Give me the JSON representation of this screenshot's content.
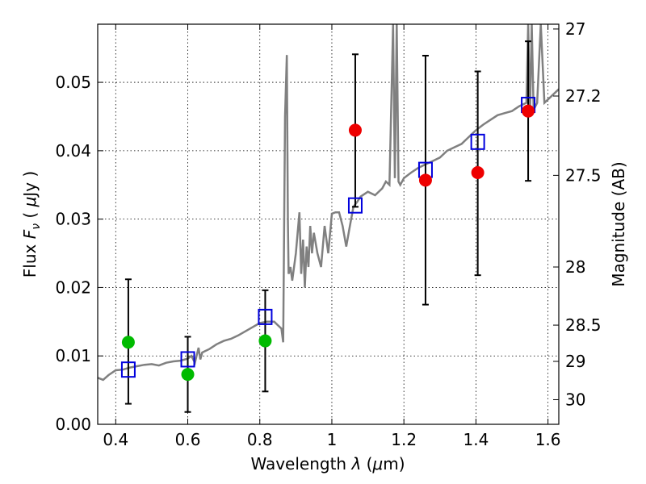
{
  "chart_data": {
    "type": "scatter",
    "xlabel": "Wavelength  λ (μm)",
    "ylabel": "Flux  F_ν ( μJy )",
    "y2label": "Magnitude (AB)",
    "xlim": [
      0.35,
      1.63
    ],
    "ylim": [
      0.0,
      0.0585
    ],
    "grid": true,
    "x_ticks": [
      0.4,
      0.6,
      0.8,
      1.0,
      1.2,
      1.4,
      1.6
    ],
    "x_tick_labels": [
      "0.4",
      "0.6",
      "0.8",
      "1",
      "1.2",
      "1.4",
      "1.6"
    ],
    "y_ticks": [
      0.0,
      0.01,
      0.02,
      0.03,
      0.04,
      0.05
    ],
    "y_tick_labels": [
      "0.00",
      "0.01",
      "0.02",
      "0.03",
      "0.04",
      "0.05"
    ],
    "y2_ticks": [
      {
        "label": "27",
        "flux": 0.0578
      },
      {
        "label": "27.2",
        "flux": 0.048
      },
      {
        "label": "27.5",
        "flux": 0.0364
      },
      {
        "label": "28",
        "flux": 0.023
      },
      {
        "label": "28.5",
        "flux": 0.0145
      },
      {
        "label": "29",
        "flux": 0.0092
      },
      {
        "label": "30",
        "flux": 0.0036
      }
    ],
    "colors": {
      "spectrum": "#808080",
      "green_points": "#00bb00",
      "red_points": "#ee0000",
      "model_squares": "#0000dd",
      "errorbars": "#000000",
      "grid": "#000000"
    },
    "series": [
      {
        "name": "Model spectrum",
        "style": "line",
        "color": "#808080",
        "x": [
          0.35,
          0.365,
          0.38,
          0.4,
          0.42,
          0.44,
          0.46,
          0.48,
          0.5,
          0.52,
          0.54,
          0.56,
          0.58,
          0.6,
          0.61,
          0.62,
          0.63,
          0.635,
          0.64,
          0.66,
          0.68,
          0.7,
          0.72,
          0.74,
          0.76,
          0.78,
          0.8,
          0.82,
          0.84,
          0.85,
          0.86,
          0.865,
          0.87,
          0.875,
          0.878,
          0.88,
          0.885,
          0.89,
          0.9,
          0.91,
          0.915,
          0.92,
          0.925,
          0.93,
          0.935,
          0.94,
          0.945,
          0.95,
          0.96,
          0.97,
          0.98,
          0.99,
          1.0,
          1.01,
          1.02,
          1.03,
          1.04,
          1.05,
          1.06,
          1.07,
          1.08,
          1.1,
          1.12,
          1.14,
          1.15,
          1.16,
          1.17,
          1.175,
          1.18,
          1.185,
          1.19,
          1.2,
          1.22,
          1.24,
          1.26,
          1.28,
          1.3,
          1.32,
          1.34,
          1.36,
          1.38,
          1.4,
          1.42,
          1.44,
          1.46,
          1.48,
          1.5,
          1.52,
          1.54,
          1.545,
          1.55,
          1.555,
          1.56,
          1.57,
          1.58,
          1.59,
          1.6,
          1.62,
          1.63
        ],
        "y": [
          0.0068,
          0.0065,
          0.0072,
          0.0079,
          0.008,
          0.0083,
          0.0085,
          0.0087,
          0.0088,
          0.0086,
          0.009,
          0.0092,
          0.0093,
          0.0096,
          0.01,
          0.009,
          0.0112,
          0.0095,
          0.0105,
          0.011,
          0.0117,
          0.0122,
          0.0125,
          0.013,
          0.0136,
          0.0142,
          0.0148,
          0.015,
          0.015,
          0.0145,
          0.014,
          0.012,
          0.045,
          0.054,
          0.03,
          0.022,
          0.023,
          0.021,
          0.025,
          0.031,
          0.022,
          0.027,
          0.02,
          0.026,
          0.023,
          0.029,
          0.025,
          0.028,
          0.025,
          0.023,
          0.029,
          0.025,
          0.0308,
          0.031,
          0.031,
          0.029,
          0.026,
          0.029,
          0.0318,
          0.0325,
          0.0333,
          0.034,
          0.0335,
          0.0345,
          0.0355,
          0.035,
          0.0585,
          0.036,
          0.0585,
          0.0355,
          0.035,
          0.036,
          0.0368,
          0.0375,
          0.038,
          0.0385,
          0.039,
          0.04,
          0.0405,
          0.041,
          0.042,
          0.043,
          0.0438,
          0.0445,
          0.0452,
          0.0455,
          0.0458,
          0.0465,
          0.047,
          0.0585,
          0.045,
          0.0585,
          0.046,
          0.047,
          0.0585,
          0.047,
          0.0475,
          0.0485,
          0.049
        ]
      },
      {
        "name": "Observed (green)",
        "style": "circle",
        "color": "#00bb00",
        "x": [
          0.435,
          0.6,
          0.815
        ],
        "y": [
          0.012,
          0.0073,
          0.0122
        ],
        "yerr_low": [
          0.003,
          0.0018,
          0.0048
        ],
        "yerr_high": [
          0.0212,
          0.0128,
          0.0196
        ]
      },
      {
        "name": "Observed (red)",
        "style": "circle",
        "color": "#ee0000",
        "x": [
          1.065,
          1.26,
          1.405,
          1.545
        ],
        "y": [
          0.043,
          0.0357,
          0.0368,
          0.0458
        ],
        "yerr_low": [
          0.0318,
          0.0175,
          0.0218,
          0.0356
        ],
        "yerr_high": [
          0.0541,
          0.0539,
          0.0516,
          0.056
        ]
      },
      {
        "name": "Model photometry (squares)",
        "style": "square",
        "color": "#0000dd",
        "x": [
          0.435,
          0.6,
          0.815,
          1.065,
          1.26,
          1.405,
          1.545
        ],
        "y": [
          0.008,
          0.0095,
          0.0157,
          0.032,
          0.0372,
          0.0413,
          0.0467
        ]
      }
    ]
  }
}
